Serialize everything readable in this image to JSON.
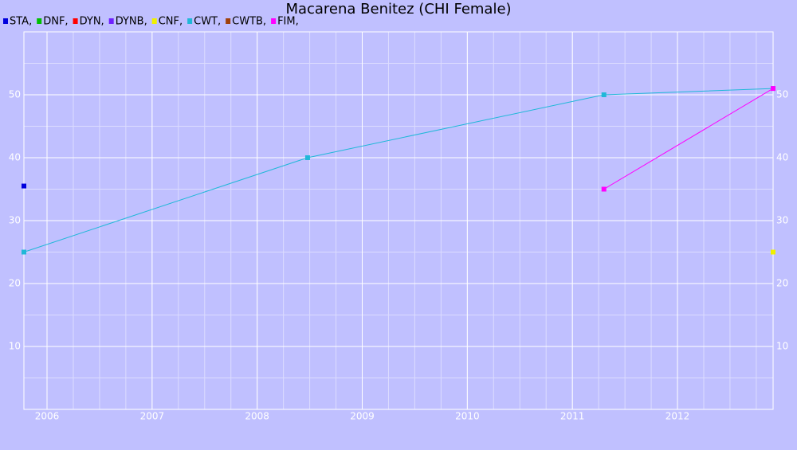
{
  "chart_data": {
    "type": "line",
    "title": "Macarena Benitez (CHI Female)",
    "xlim": [
      2005.78,
      2012.91
    ],
    "xticks": [
      2006,
      2007,
      2008,
      2009,
      2010,
      2011,
      2012
    ],
    "ylim": [
      0,
      60
    ],
    "yticks": [
      10,
      20,
      30,
      40,
      50
    ],
    "grid": true,
    "legend": "top-left",
    "series": [
      {
        "name": "STA,",
        "color": "#0000dd",
        "x": [
          2005.78
        ],
        "values": [
          35.5
        ]
      },
      {
        "name": "DNF,",
        "color": "#00c000",
        "x": [],
        "values": []
      },
      {
        "name": "DYN,",
        "color": "#ff0000",
        "x": [],
        "values": []
      },
      {
        "name": "DYNB,",
        "color": "#7020ff",
        "x": [],
        "values": []
      },
      {
        "name": "CNF,",
        "color": "#f0f000",
        "x": [
          2012.91
        ],
        "values": [
          25
        ]
      },
      {
        "name": "CWT,",
        "color": "#20b8d8",
        "x": [
          2005.78,
          2008.48,
          2011.3,
          2012.91
        ],
        "values": [
          25,
          40,
          50,
          51
        ]
      },
      {
        "name": "CWTB,",
        "color": "#a0400a",
        "x": [],
        "values": []
      },
      {
        "name": "FIM,",
        "color": "#ff00ff",
        "x": [
          2011.3,
          2012.91
        ],
        "values": [
          35,
          51
        ]
      }
    ]
  }
}
